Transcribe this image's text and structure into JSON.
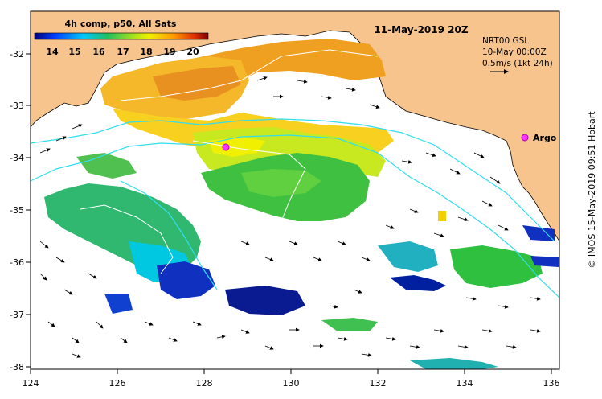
{
  "map": {
    "colorbar_title": "4h comp, p50, All Sats",
    "colorbar_ticks": [
      "14",
      "15",
      "16",
      "17",
      "18",
      "19",
      "20"
    ],
    "date_title": "11-May-2019 20Z",
    "info_lines": [
      "NRT00 GSL",
      "10-May 00:00Z",
      "0.5m/s (1kt 24h)"
    ],
    "argo_label": "Argo",
    "credit": "© IMOS 15-May-2019 09:51 Hobart",
    "x_ticks": [
      "124",
      "126",
      "128",
      "130",
      "132",
      "134",
      "136"
    ],
    "y_ticks": [
      "-32",
      "-33",
      "-34",
      "-35",
      "-36",
      "-37",
      "-38"
    ],
    "colors": {
      "land": "#f7c48e",
      "ocean": "#ffffff",
      "bathymetry": "#33ddee",
      "argo": "#ff33ff"
    },
    "icons": {
      "argo_marker": "magenta-asterisk",
      "current_vectors": "black-arrows"
    }
  }
}
